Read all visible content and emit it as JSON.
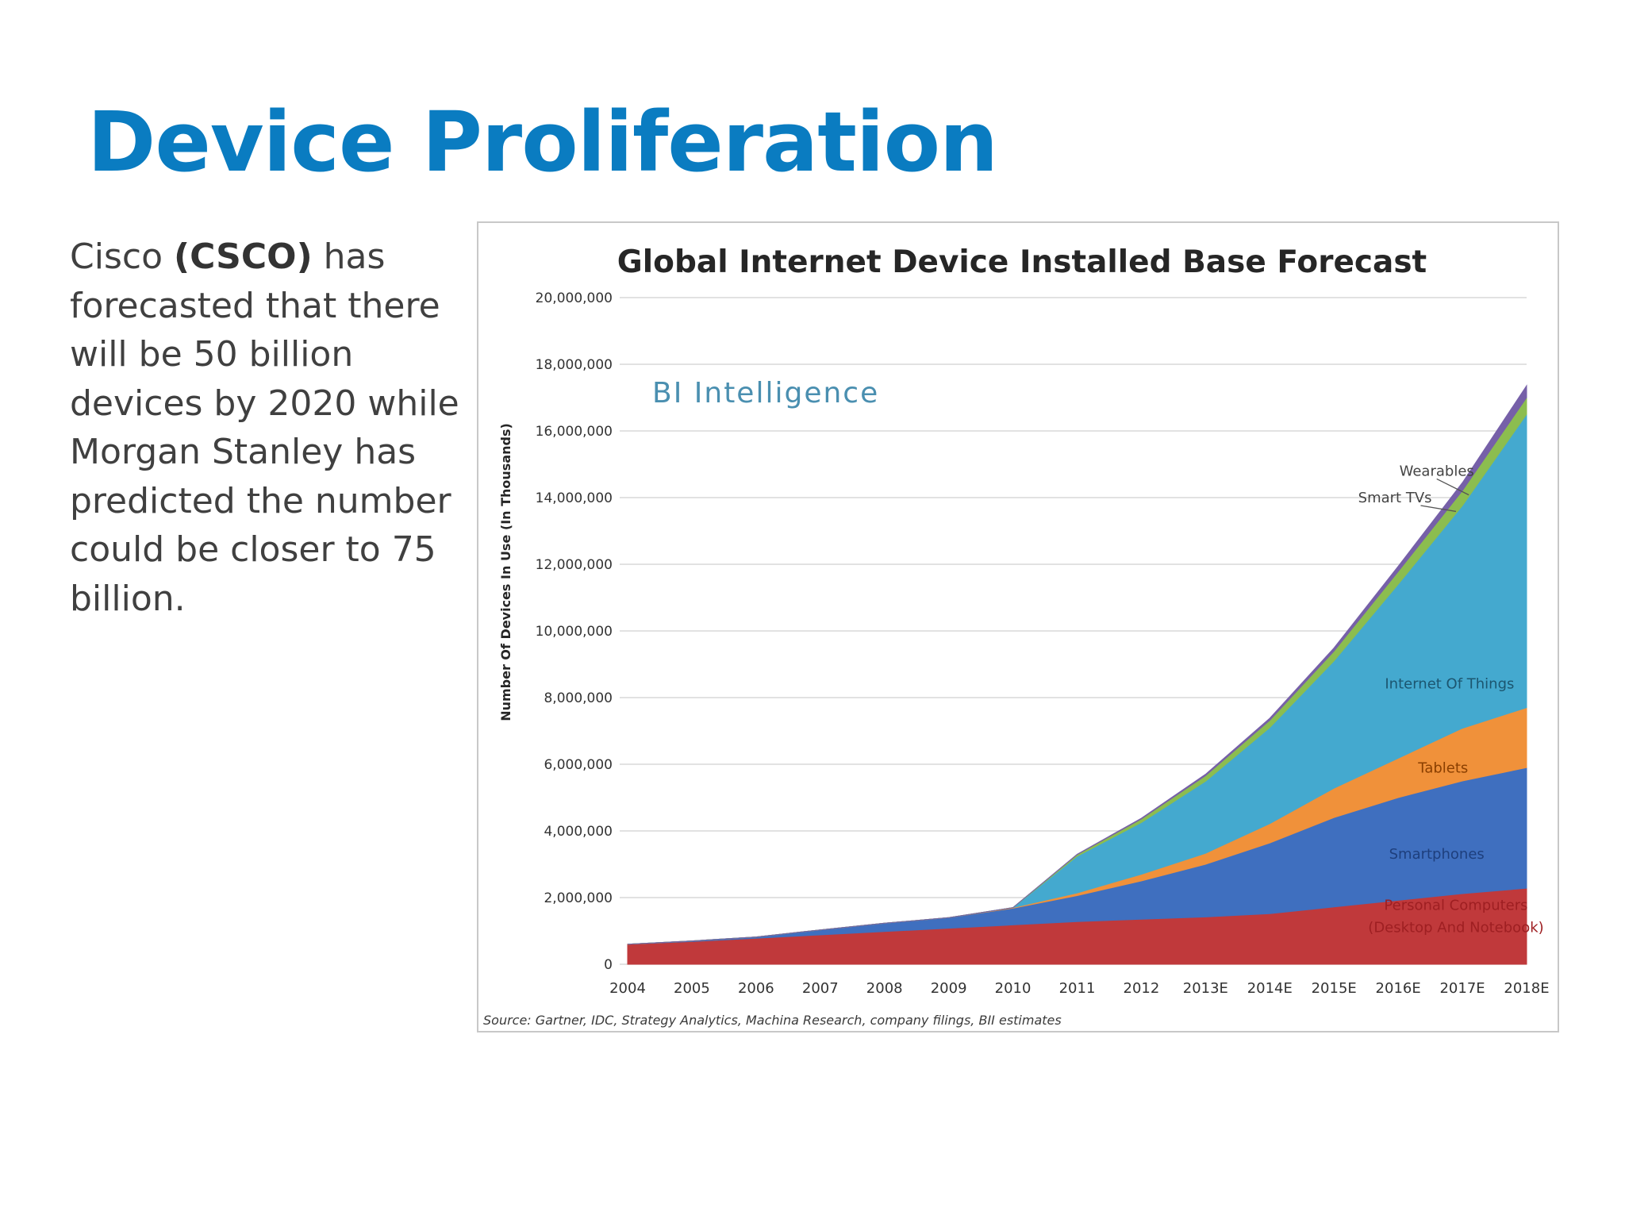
{
  "slide": {
    "title": "Device Proliferation",
    "body_pre": "Cisco ",
    "body_bold": "(CSCO)",
    "body_post": " has forecasted that there will be 50 billion devices by 2020 while Morgan Stanley has predicted the number could be closer to 75 billion."
  },
  "chart_data": {
    "type": "area",
    "stacked": true,
    "title": "Global Internet Device Installed Base Forecast",
    "watermark": "BI Intelligence",
    "ylabel": "Number Of Devices In Use (In Thousands)",
    "xlabel": "",
    "source": "Source: Gartner, IDC, Strategy Analytics, Machina Research, company filings, BII estimates",
    "ylim": [
      0,
      20000000
    ],
    "yticks": [
      0,
      2000000,
      4000000,
      6000000,
      8000000,
      10000000,
      12000000,
      14000000,
      16000000,
      18000000,
      20000000
    ],
    "ytick_labels": [
      "0",
      "2,000,000",
      "4,000,000",
      "6,000,000",
      "8,000,000",
      "10,000,000",
      "12,000,000",
      "14,000,000",
      "16,000,000",
      "18,000,000",
      "20,000,000"
    ],
    "grid": true,
    "legend": "inline labels",
    "categories": [
      "2004",
      "2005",
      "2006",
      "2007",
      "2008",
      "2009",
      "2010",
      "2011",
      "2012",
      "2013E",
      "2014E",
      "2015E",
      "2016E",
      "2017E",
      "2018E"
    ],
    "series": [
      {
        "name": "Personal Computers (Desktop And Notebook)",
        "color": "#c0393b",
        "values": [
          600000,
          680000,
          780000,
          880000,
          980000,
          1080000,
          1180000,
          1280000,
          1350000,
          1420000,
          1520000,
          1720000,
          1920000,
          2120000,
          2280000
        ]
      },
      {
        "name": "Smartphones",
        "color": "#3f6fbf",
        "values": [
          0,
          20000,
          40000,
          150000,
          250000,
          320000,
          500000,
          780000,
          1150000,
          1580000,
          2120000,
          2680000,
          3080000,
          3380000,
          3620000
        ]
      },
      {
        "name": "Tablets",
        "color": "#f0913a",
        "values": [
          0,
          0,
          0,
          0,
          0,
          0,
          20000,
          80000,
          200000,
          330000,
          580000,
          880000,
          1180000,
          1580000,
          1800000
        ]
      },
      {
        "name": "Internet Of Things",
        "color": "#44a9cf",
        "values": [
          0,
          0,
          0,
          0,
          0,
          0,
          0,
          1100000,
          1550000,
          2160000,
          2880000,
          3820000,
          5220000,
          6680000,
          8800000
        ]
      },
      {
        "name": "Smart TVs",
        "color": "#8cbd4f",
        "values": [
          0,
          0,
          0,
          0,
          0,
          0,
          0,
          50000,
          110000,
          170000,
          220000,
          290000,
          380000,
          450000,
          500000
        ]
      },
      {
        "name": "Wearables",
        "color": "#7660a8",
        "values": [
          0,
          0,
          0,
          0,
          0,
          0,
          0,
          10000,
          20000,
          40000,
          60000,
          100000,
          160000,
          240000,
          360000
        ]
      }
    ],
    "series_labels": [
      {
        "lines": [
          "Personal Computers",
          "(Desktop And Notebook)"
        ]
      },
      {
        "lines": [
          "Smartphones"
        ]
      },
      {
        "lines": [
          "Tablets"
        ]
      },
      {
        "lines": [
          "Internet Of Things"
        ]
      },
      {
        "lines": [
          "Smart TVs"
        ]
      },
      {
        "lines": [
          "Wearables"
        ]
      }
    ]
  }
}
